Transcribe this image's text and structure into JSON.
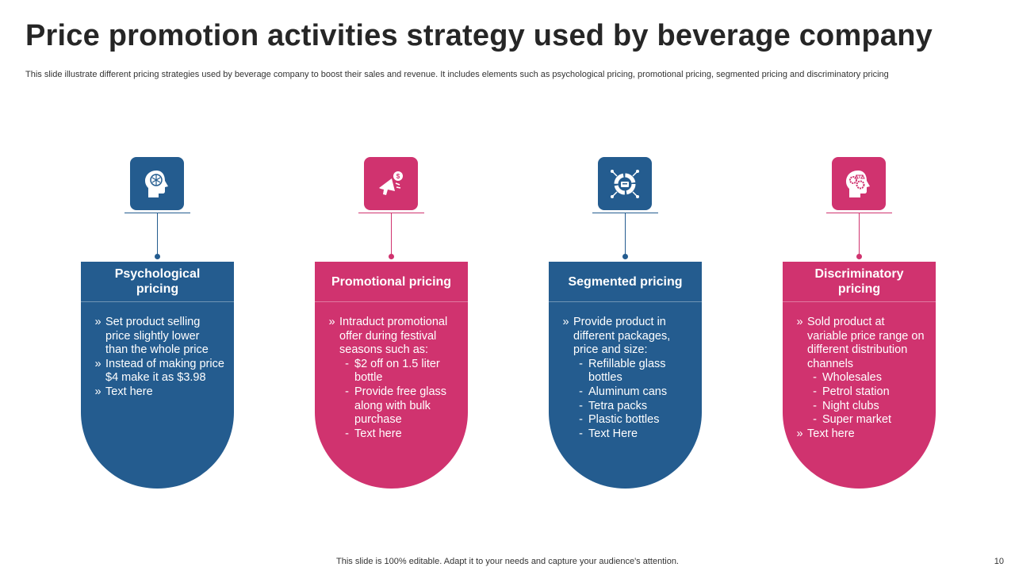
{
  "title": "Price promotion activities strategy used by beverage company",
  "subtitle": "This slide illustrate different pricing strategies used by beverage company to  boost their sales and revenue. It includes elements such as psychological pricing, promotional pricing, segmented pricing and discriminatory pricing",
  "colors": {
    "blue": "#245c8f",
    "pink": "#d0336f"
  },
  "cards": [
    {
      "heading": "Psychological pricing",
      "icon": "brain-head-icon",
      "items": [
        {
          "marker": "»",
          "text": "Set product selling price slightly lower than the whole price"
        },
        {
          "marker": "»",
          "text": "Instead of making price $4 make it as $3.98"
        },
        {
          "marker": "»",
          "text": "Text here"
        }
      ]
    },
    {
      "heading": "Promotional pricing",
      "icon": "megaphone-icon",
      "items": [
        {
          "marker": "»",
          "text": "Intraduct promotional offer during festival seasons such as:"
        },
        {
          "marker": "-",
          "text": "$2 off on 1.5 liter bottle"
        },
        {
          "marker": "-",
          "text": "Provide free glass along with bulk purchase"
        },
        {
          "marker": "-",
          "text": "Text here"
        }
      ]
    },
    {
      "heading": "Segmented pricing",
      "icon": "segment-target-icon",
      "items": [
        {
          "marker": "»",
          "text": "Provide product in different packages, price and size:"
        },
        {
          "marker": "-",
          "text": "Refillable glass bottles"
        },
        {
          "marker": "-",
          "text": "Aluminum cans"
        },
        {
          "marker": "-",
          "text": "Tetra packs"
        },
        {
          "marker": "-",
          "text": "Plastic bottles"
        },
        {
          "marker": "-",
          "text": "Text Here"
        }
      ]
    },
    {
      "heading": "Discriminatory pricing",
      "icon": "head-gears-scale-icon",
      "items": [
        {
          "marker": "»",
          "text": "Sold product at variable price range on different distribution channels"
        },
        {
          "marker": "-",
          "text": "Wholesales"
        },
        {
          "marker": "-",
          "text": "Petrol station"
        },
        {
          "marker": "-",
          "text": "Night clubs"
        },
        {
          "marker": "-",
          "text": "Super market"
        },
        {
          "marker": "»",
          "text": "Text here"
        }
      ]
    }
  ],
  "footer": "This slide is 100% editable. Adapt it to your needs and capture your audience's attention.",
  "page_number": "10"
}
